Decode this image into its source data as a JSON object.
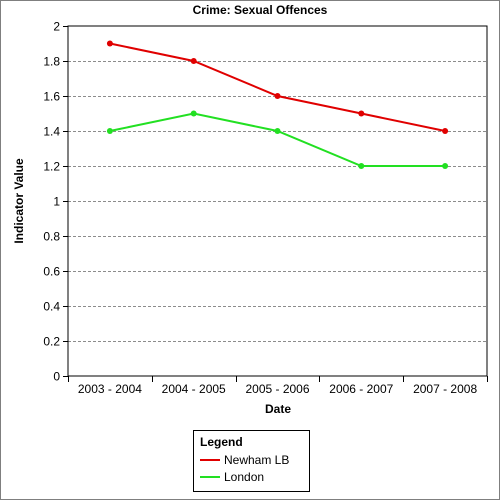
{
  "chart_data": {
    "type": "line",
    "title": "Crime: Sexual Offences",
    "xlabel": "Date",
    "ylabel": "Indicator Value",
    "categories": [
      "2003 - 2004",
      "2004 - 2005",
      "2005 - 2006",
      "2006 - 2007",
      "2007 - 2008"
    ],
    "ylim": [
      0,
      2
    ],
    "yticks": [
      "0",
      "0.2",
      "0.4",
      "0.6",
      "0.8",
      "1",
      "1.2",
      "1.4",
      "1.6",
      "1.8",
      "2"
    ],
    "ytick_values": [
      0,
      0.2,
      0.4,
      0.6,
      0.8,
      1,
      1.2,
      1.4,
      1.6,
      1.8,
      2
    ],
    "grid": true,
    "legend_title": "Legend",
    "legend_position": "bottom-center",
    "series": [
      {
        "name": "Newham LB",
        "color": "#e00000",
        "values": [
          1.9,
          1.8,
          1.6,
          1.5,
          1.4
        ]
      },
      {
        "name": "London",
        "color": "#22e022",
        "values": [
          1.4,
          1.5,
          1.4,
          1.2,
          1.2
        ]
      }
    ]
  }
}
